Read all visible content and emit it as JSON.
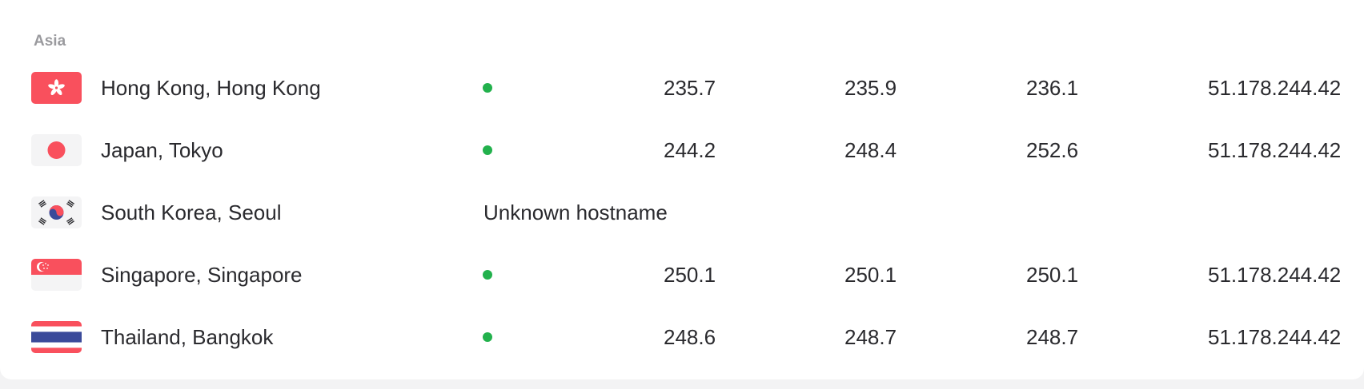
{
  "region": {
    "title": "Asia"
  },
  "colors": {
    "status_online": "#22b14c",
    "flag_red": "#f9505d",
    "flag_blue": "#3a4a9a"
  },
  "rows": [
    {
      "flag_icon": "hong-kong-flag-icon",
      "location": "Hong Kong, Hong Kong",
      "status": "online",
      "status_text": "",
      "ping_1": "235.7",
      "ping_2": "235.9",
      "ping_3": "236.1",
      "ip": "51.178.244.42"
    },
    {
      "flag_icon": "japan-flag-icon",
      "location": "Japan, Tokyo",
      "status": "online",
      "status_text": "",
      "ping_1": "244.2",
      "ping_2": "248.4",
      "ping_3": "252.6",
      "ip": "51.178.244.42"
    },
    {
      "flag_icon": "south-korea-flag-icon",
      "location": "South Korea, Seoul",
      "status": "error",
      "status_text": "Unknown hostname",
      "ping_1": "",
      "ping_2": "",
      "ping_3": "",
      "ip": ""
    },
    {
      "flag_icon": "singapore-flag-icon",
      "location": "Singapore, Singapore",
      "status": "online",
      "status_text": "",
      "ping_1": "250.1",
      "ping_2": "250.1",
      "ping_3": "250.1",
      "ip": "51.178.244.42"
    },
    {
      "flag_icon": "thailand-flag-icon",
      "location": "Thailand, Bangkok",
      "status": "online",
      "status_text": "",
      "ping_1": "248.6",
      "ping_2": "248.7",
      "ping_3": "248.7",
      "ip": "51.178.244.42"
    }
  ]
}
